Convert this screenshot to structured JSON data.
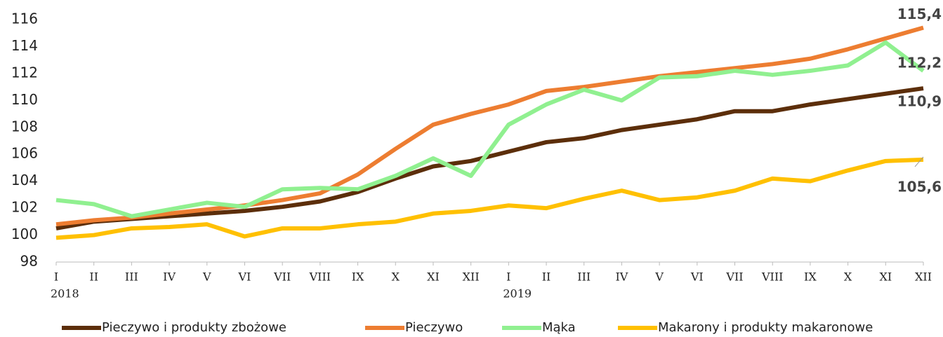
{
  "chart_data": {
    "type": "line",
    "groups": [
      {
        "label": "2018",
        "categories": [
          "I",
          "II",
          "III",
          "IV",
          "V",
          "VI",
          "VII",
          "VIII",
          "IX",
          "X",
          "XI",
          "XII"
        ]
      },
      {
        "label": "2019",
        "categories": [
          "I",
          "II",
          "III",
          "IV",
          "V",
          "VI",
          "VII",
          "VIII",
          "IX",
          "X",
          "XI",
          "XII"
        ]
      }
    ],
    "series": [
      {
        "name": "Pieczywo i produkty zbożowe",
        "color": "#5c2e0a",
        "values": [
          100.5,
          101.0,
          101.2,
          101.4,
          101.6,
          101.8,
          102.1,
          102.5,
          103.2,
          104.2,
          105.1,
          105.5,
          106.2,
          106.9,
          107.2,
          107.8,
          108.2,
          108.6,
          109.2,
          109.2,
          109.7,
          110.1,
          110.5,
          110.9
        ],
        "value_labels": [
          null,
          null,
          null,
          null,
          null,
          null,
          null,
          null,
          null,
          null,
          null,
          null,
          null,
          null,
          null,
          null,
          null,
          null,
          null,
          null,
          null,
          null,
          null,
          "110,9"
        ]
      },
      {
        "name": "Pieczywo",
        "color": "#ed7d31",
        "values": [
          100.8,
          101.1,
          101.3,
          101.6,
          101.9,
          102.2,
          102.6,
          103.1,
          104.5,
          106.4,
          108.2,
          109.0,
          109.7,
          110.7,
          111.0,
          111.4,
          111.8,
          112.1,
          112.4,
          112.7,
          113.1,
          113.8,
          114.6,
          115.4
        ],
        "value_labels": [
          null,
          null,
          null,
          null,
          null,
          null,
          null,
          null,
          null,
          null,
          null,
          null,
          null,
          null,
          null,
          null,
          null,
          null,
          null,
          null,
          null,
          null,
          null,
          "115,4"
        ]
      },
      {
        "name": "Mąka",
        "color": "#90f090",
        "values": [
          102.6,
          102.3,
          101.4,
          101.9,
          102.4,
          102.1,
          103.4,
          103.5,
          103.4,
          104.4,
          105.7,
          104.4,
          108.2,
          109.7,
          110.8,
          110.0,
          111.7,
          111.8,
          112.2,
          111.9,
          112.2,
          112.6,
          114.3,
          112.2
        ],
        "value_labels": [
          null,
          null,
          null,
          null,
          null,
          null,
          null,
          null,
          null,
          null,
          null,
          null,
          null,
          null,
          null,
          null,
          null,
          null,
          null,
          null,
          null,
          null,
          null,
          "112,2"
        ]
      },
      {
        "name": "Makarony i produkty makaronowe",
        "color": "#ffc000",
        "values": [
          99.8,
          100.0,
          100.5,
          100.6,
          100.8,
          99.9,
          100.5,
          100.5,
          100.8,
          101.0,
          101.6,
          101.8,
          102.2,
          102.0,
          102.7,
          103.3,
          102.6,
          102.8,
          103.3,
          104.2,
          104.0,
          104.8,
          105.5,
          105.6
        ],
        "value_labels": [
          null,
          null,
          null,
          null,
          null,
          null,
          null,
          null,
          null,
          null,
          null,
          null,
          null,
          null,
          null,
          null,
          null,
          null,
          null,
          null,
          null,
          null,
          null,
          "105,6"
        ]
      }
    ],
    "ylim": [
      98,
      116
    ],
    "yticks": [
      98,
      100,
      102,
      104,
      106,
      108,
      110,
      112,
      114,
      116
    ],
    "grid": false,
    "legend": "bottom"
  }
}
